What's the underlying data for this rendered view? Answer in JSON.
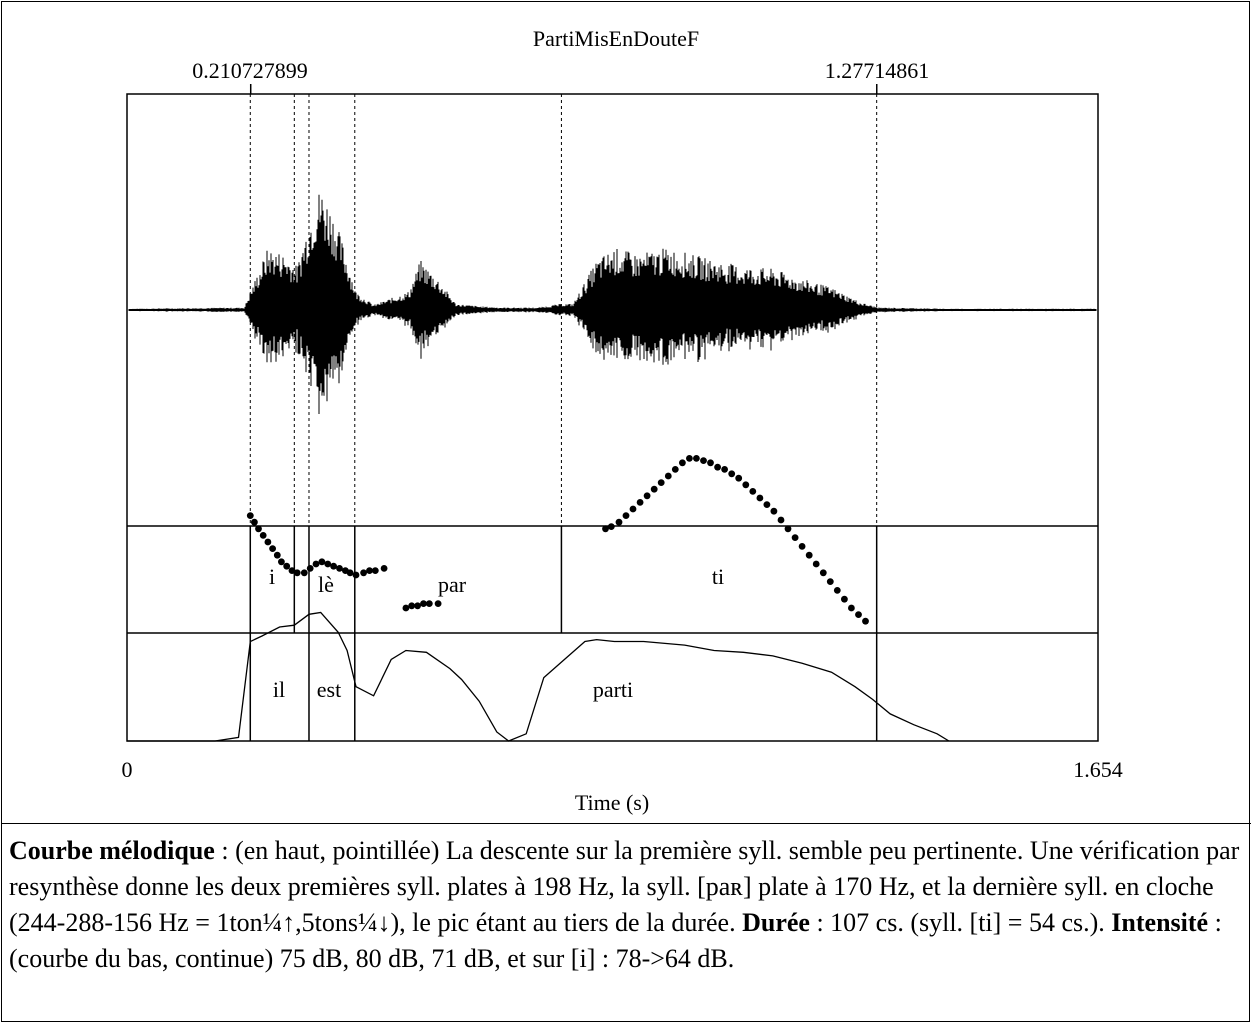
{
  "figure": {
    "title": "PartiMisEnDouteF",
    "selection_start": "0.210727899",
    "selection_end": "1.27714861",
    "x_axis_label": "Time (s)",
    "x_min": "0",
    "x_max": "1.654",
    "syllable_tier": [
      "i",
      "lè",
      "par",
      "ti"
    ],
    "word_tier": [
      "il",
      "est",
      "parti"
    ]
  },
  "chart_data": {
    "type": "scatter",
    "xlabel": "Time (s)",
    "xlim": [
      0,
      1.654
    ],
    "boundaries": {
      "selection": [
        0.210727899,
        1.27714861
      ],
      "syllables": [
        0.21,
        0.285,
        0.31,
        0.388,
        0.74,
        1.277
      ],
      "words": [
        0.21,
        0.31,
        0.388,
        1.277
      ]
    },
    "waveform_envelope": {
      "t": [
        0.0,
        0.2,
        0.21,
        0.24,
        0.27,
        0.29,
        0.3,
        0.32,
        0.33,
        0.35,
        0.37,
        0.39,
        0.42,
        0.48,
        0.5,
        0.53,
        0.56,
        0.6,
        0.64,
        0.7,
        0.74,
        0.76,
        0.8,
        0.83,
        0.87,
        0.92,
        0.96,
        1.0,
        1.05,
        1.1,
        1.15,
        1.2,
        1.25,
        1.28,
        1.4,
        1.654
      ],
      "amplitude": [
        0.01,
        0.02,
        0.15,
        0.5,
        0.45,
        0.35,
        0.55,
        0.9,
        1.0,
        0.8,
        0.5,
        0.15,
        0.04,
        0.15,
        0.4,
        0.25,
        0.05,
        0.03,
        0.02,
        0.02,
        0.05,
        0.05,
        0.4,
        0.5,
        0.45,
        0.5,
        0.45,
        0.4,
        0.35,
        0.33,
        0.25,
        0.18,
        0.06,
        0.02,
        0.01,
        0.01
      ]
    },
    "series": [
      {
        "kind": "pitch_points",
        "t": [
          0.21,
          0.217,
          0.224,
          0.232,
          0.24,
          0.248,
          0.256,
          0.263,
          0.272,
          0.281,
          0.29,
          0.302,
          0.312,
          0.322,
          0.332,
          0.342,
          0.352,
          0.362,
          0.372,
          0.38,
          0.39,
          0.403,
          0.413,
          0.423,
          0.438,
          0.475,
          0.485,
          0.495,
          0.505,
          0.515,
          0.53,
          0.815,
          0.825,
          0.838,
          0.85,
          0.862,
          0.874,
          0.886,
          0.898,
          0.91,
          0.922,
          0.934,
          0.946,
          0.958,
          0.97,
          0.982,
          0.994,
          1.006,
          1.018,
          1.03,
          1.042,
          1.054,
          1.066,
          1.078,
          1.09,
          1.102,
          1.114,
          1.126,
          1.138,
          1.15,
          1.162,
          1.174,
          1.186,
          1.198,
          1.21,
          1.222,
          1.234,
          1.246,
          1.258
        ],
        "y": [
          0.52,
          0.49,
          0.46,
          0.43,
          0.4,
          0.37,
          0.34,
          0.31,
          0.29,
          0.27,
          0.26,
          0.26,
          0.28,
          0.3,
          0.31,
          0.3,
          0.29,
          0.28,
          0.27,
          0.26,
          0.25,
          0.26,
          0.27,
          0.27,
          0.28,
          0.1,
          0.11,
          0.11,
          0.12,
          0.12,
          0.12,
          0.46,
          0.47,
          0.49,
          0.52,
          0.55,
          0.58,
          0.61,
          0.64,
          0.67,
          0.7,
          0.73,
          0.76,
          0.78,
          0.78,
          0.77,
          0.76,
          0.74,
          0.73,
          0.71,
          0.69,
          0.66,
          0.63,
          0.6,
          0.57,
          0.54,
          0.5,
          0.46,
          0.42,
          0.38,
          0.34,
          0.3,
          0.26,
          0.22,
          0.18,
          0.14,
          0.1,
          0.07,
          0.04
        ]
      },
      {
        "kind": "intensity_curve",
        "t": [
          0.0,
          0.15,
          0.19,
          0.21,
          0.23,
          0.26,
          0.285,
          0.31,
          0.33,
          0.36,
          0.375,
          0.39,
          0.42,
          0.45,
          0.475,
          0.51,
          0.55,
          0.57,
          0.6,
          0.63,
          0.65,
          0.68,
          0.71,
          0.745,
          0.78,
          0.8,
          0.83,
          0.88,
          0.95,
          1.0,
          1.05,
          1.1,
          1.15,
          1.2,
          1.24,
          1.27,
          1.3,
          1.34,
          1.38,
          1.4
        ],
        "y": [
          0.0,
          0.0,
          0.02,
          0.55,
          0.58,
          0.63,
          0.64,
          0.7,
          0.71,
          0.6,
          0.5,
          0.3,
          0.25,
          0.45,
          0.5,
          0.49,
          0.4,
          0.34,
          0.22,
          0.05,
          0.0,
          0.04,
          0.35,
          0.45,
          0.55,
          0.56,
          0.55,
          0.55,
          0.53,
          0.5,
          0.49,
          0.47,
          0.43,
          0.38,
          0.3,
          0.23,
          0.15,
          0.09,
          0.04,
          0.0
        ]
      }
    ]
  },
  "caption": {
    "p1_bold": "Courbe mélodique",
    "p1_text": " : (en haut, pointillée) La descente sur la première syll. semble peu pertinente. Une vérification par resynthèse donne les deux premières syll. plates à 198 Hz, la syll. [paʀ] plate à 170 Hz, et la dernière syll. en cloche (244-288-156 Hz = 1ton¼↑,5tons¼↓), le pic étant au tiers de la durée. ",
    "p2_bold": "Durée",
    "p2_text": " : 107 cs. (syll. [ti] = 54 cs.). ",
    "p3_bold": "Intensité",
    "p3_text": " : (courbe du bas, continue) 75 dB, 80 dB, 71 dB, et sur [i] : 78->64 dB."
  }
}
